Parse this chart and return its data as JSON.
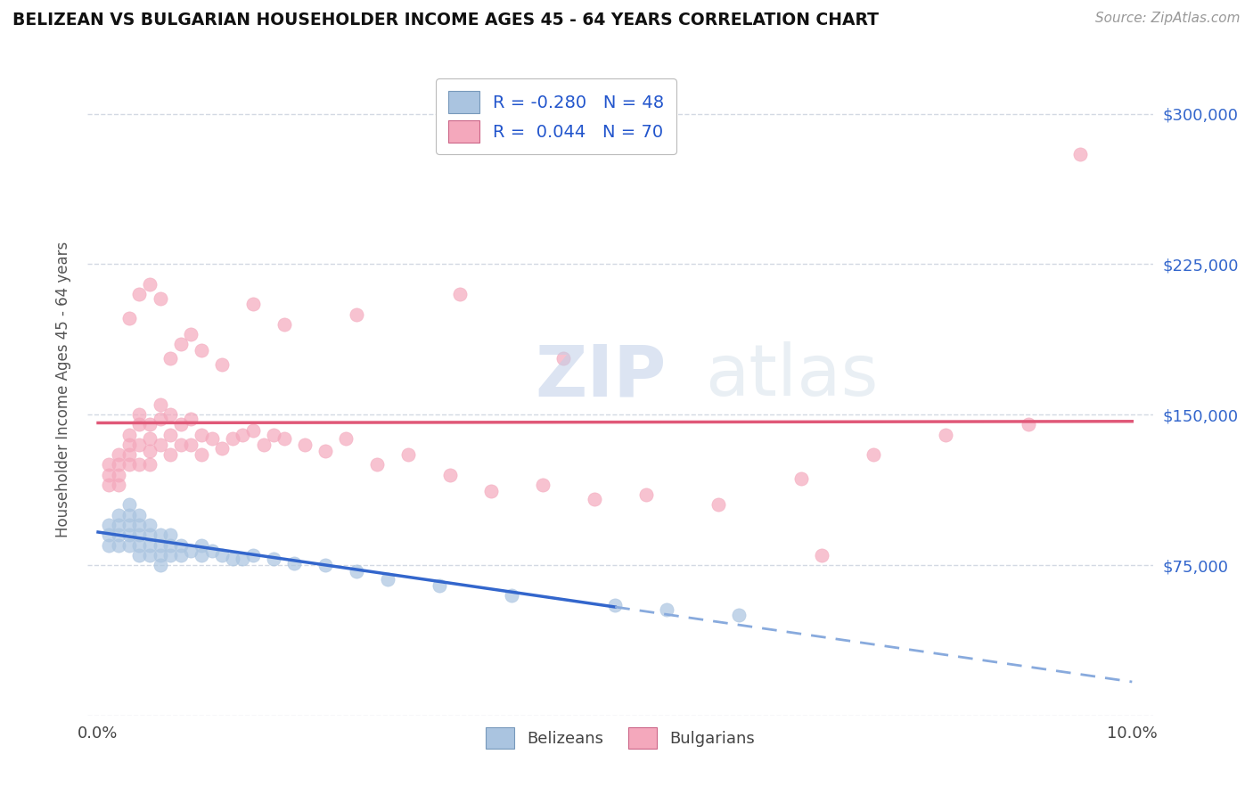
{
  "title": "BELIZEAN VS BULGARIAN HOUSEHOLDER INCOME AGES 45 - 64 YEARS CORRELATION CHART",
  "source": "Source: ZipAtlas.com",
  "ylabel": "Householder Income Ages 45 - 64 years",
  "xlim": [
    -0.001,
    0.102
  ],
  "ylim": [
    0,
    325000
  ],
  "yticks": [
    0,
    75000,
    150000,
    225000,
    300000
  ],
  "ytick_labels": [
    "",
    "$75,000",
    "$150,000",
    "$225,000",
    "$300,000"
  ],
  "xticks": [
    0.0,
    0.02,
    0.04,
    0.06,
    0.08,
    0.1
  ],
  "xtick_labels": [
    "0.0%",
    "",
    "",
    "",
    "",
    "10.0%"
  ],
  "belizean_color": "#aac4e0",
  "bulgarian_color": "#f4a8bc",
  "trend_blue_solid": "#3366cc",
  "trend_blue_dash": "#88aadd",
  "trend_pink": "#e05878",
  "watermark_color": "#d0dff0",
  "background_color": "#ffffff",
  "grid_color": "#c8d0dc",
  "belizean_label": "Belizeans",
  "bulgarian_label": "Bulgarians",
  "belizean_x": [
    0.001,
    0.001,
    0.001,
    0.002,
    0.002,
    0.002,
    0.002,
    0.003,
    0.003,
    0.003,
    0.003,
    0.003,
    0.004,
    0.004,
    0.004,
    0.004,
    0.004,
    0.005,
    0.005,
    0.005,
    0.005,
    0.006,
    0.006,
    0.006,
    0.006,
    0.007,
    0.007,
    0.007,
    0.008,
    0.008,
    0.009,
    0.01,
    0.01,
    0.011,
    0.012,
    0.013,
    0.014,
    0.015,
    0.017,
    0.019,
    0.022,
    0.025,
    0.028,
    0.033,
    0.04,
    0.05,
    0.055,
    0.062
  ],
  "belizean_y": [
    95000,
    90000,
    85000,
    100000,
    95000,
    90000,
    85000,
    105000,
    100000,
    95000,
    90000,
    85000,
    100000,
    95000,
    90000,
    85000,
    80000,
    95000,
    90000,
    85000,
    80000,
    90000,
    85000,
    80000,
    75000,
    90000,
    85000,
    80000,
    85000,
    80000,
    82000,
    85000,
    80000,
    82000,
    80000,
    78000,
    78000,
    80000,
    78000,
    76000,
    75000,
    72000,
    68000,
    65000,
    60000,
    55000,
    53000,
    50000
  ],
  "bulgarian_x": [
    0.001,
    0.001,
    0.001,
    0.002,
    0.002,
    0.002,
    0.002,
    0.003,
    0.003,
    0.003,
    0.003,
    0.004,
    0.004,
    0.004,
    0.004,
    0.005,
    0.005,
    0.005,
    0.005,
    0.006,
    0.006,
    0.006,
    0.007,
    0.007,
    0.007,
    0.008,
    0.008,
    0.009,
    0.009,
    0.01,
    0.01,
    0.011,
    0.012,
    0.013,
    0.014,
    0.015,
    0.016,
    0.017,
    0.018,
    0.02,
    0.022,
    0.024,
    0.027,
    0.03,
    0.034,
    0.038,
    0.043,
    0.048,
    0.053,
    0.06,
    0.068,
    0.075,
    0.082,
    0.003,
    0.004,
    0.005,
    0.006,
    0.007,
    0.008,
    0.009,
    0.01,
    0.012,
    0.015,
    0.018,
    0.025,
    0.035,
    0.045,
    0.09,
    0.07,
    0.095
  ],
  "bulgarian_y": [
    125000,
    120000,
    115000,
    130000,
    125000,
    120000,
    115000,
    140000,
    135000,
    130000,
    125000,
    150000,
    145000,
    135000,
    125000,
    145000,
    138000,
    132000,
    125000,
    155000,
    148000,
    135000,
    150000,
    140000,
    130000,
    145000,
    135000,
    148000,
    135000,
    140000,
    130000,
    138000,
    133000,
    138000,
    140000,
    142000,
    135000,
    140000,
    138000,
    135000,
    132000,
    138000,
    125000,
    130000,
    120000,
    112000,
    115000,
    108000,
    110000,
    105000,
    118000,
    130000,
    140000,
    198000,
    210000,
    215000,
    208000,
    178000,
    185000,
    190000,
    182000,
    175000,
    205000,
    195000,
    200000,
    210000,
    178000,
    145000,
    80000,
    280000
  ]
}
